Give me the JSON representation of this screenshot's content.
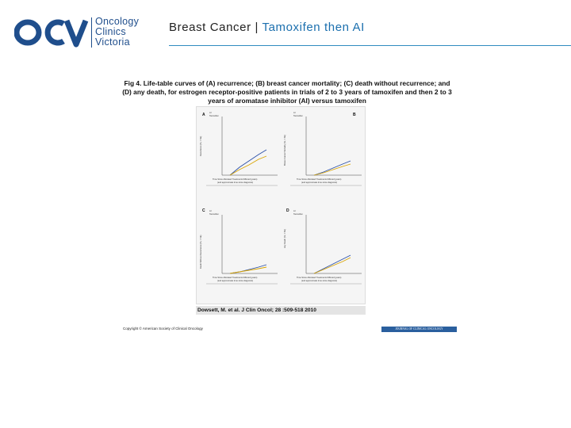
{
  "header": {
    "logo_mark": "OCV",
    "logo_lines": [
      "Oncology",
      "Clinics",
      "Victoria"
    ],
    "title_main": "Breast Cancer",
    "title_separator": "|",
    "title_sub": "Tamoxifen then AI",
    "colors": {
      "logo": "#1f4e8c",
      "sub": "#1b6fae",
      "rule": "#2f8bbf"
    }
  },
  "figure": {
    "title_lines": [
      "Fig 4. Life-table curves of (A) recurrence; (B) breast cancer mortality; (C) death without recurrence; and",
      "(D) any death, for estrogen receptor-positive patients in trials of 2 to 3 years of tamoxifen and then 2 to 3",
      "years of aromatase inhibitor (AI) versus tamoxifen"
    ],
    "panels": [
      {
        "letter": "A",
        "ylabel": "Recurrence (%, ± SE)"
      },
      {
        "letter": "B",
        "ylabel": "Breast Cancer Mortality (%, ± SE)"
      },
      {
        "letter": "C",
        "ylabel": "Death Without Recurrence (%, ± SE)"
      },
      {
        "letter": "D",
        "ylabel": "Any Death (%, ± SE)"
      }
    ],
    "xlabel": "Time Since Allocated Treatments Differed (years)",
    "xlabel_sub": "(and approximate time since diagnosis)",
    "legend": [
      "AI",
      "Tamoxifen"
    ],
    "citation": "Dowsett, M. et al. J Clin Oncol; 28 :509-518 2010",
    "copyright": "Copyright © American Society of Clinical Oncology",
    "journal": "JOURNAL OF CLINICAL ONCOLOGY"
  }
}
